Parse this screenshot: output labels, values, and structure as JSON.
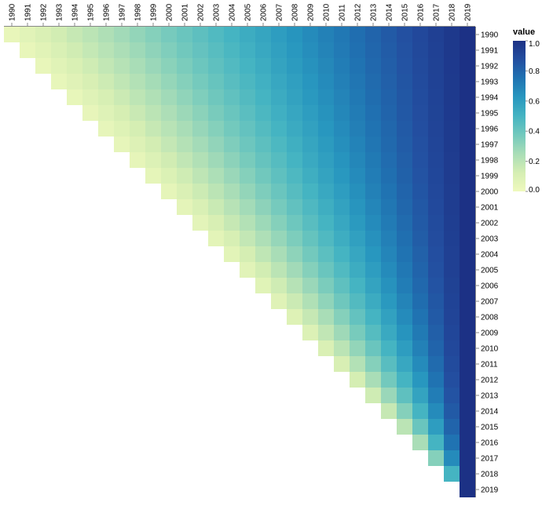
{
  "chart_data": {
    "type": "heatmap",
    "title": "",
    "x_categories": [
      "1990",
      "1991",
      "1992",
      "1993",
      "1994",
      "1995",
      "1996",
      "1997",
      "1998",
      "1999",
      "2000",
      "2001",
      "2002",
      "2003",
      "2004",
      "2005",
      "2006",
      "2007",
      "2008",
      "2009",
      "2010",
      "2011",
      "2012",
      "2013",
      "2014",
      "2015",
      "2016",
      "2017",
      "2018",
      "2019"
    ],
    "y_categories": [
      "1990",
      "1991",
      "1992",
      "1993",
      "1994",
      "1995",
      "1996",
      "1997",
      "1998",
      "1999",
      "2000",
      "2001",
      "2002",
      "2003",
      "2004",
      "2005",
      "2006",
      "2007",
      "2008",
      "2009",
      "2010",
      "2011",
      "2012",
      "2013",
      "2014",
      "2015",
      "2016",
      "2017",
      "2018",
      "2019"
    ],
    "x_axis_position": "top",
    "y_axis_position": "right",
    "shape": "upper-triangle",
    "value_rule": "value(row, col) = 1 - (2019 - col) / (2019 - row + 1), shown only where col >= row",
    "legend": {
      "title": "value",
      "ticks": [
        "1.0",
        "0.8",
        "0.6",
        "0.4",
        "0.2",
        "0.0"
      ],
      "domain": [
        0,
        1
      ],
      "placement": "right"
    },
    "color_scheme": {
      "name": "yellow-green-blue",
      "stops": [
        "#eff9bd",
        "#d5eeb3",
        "#a9ddb7",
        "#73c9bd",
        "#45b4c2",
        "#2897bf",
        "#2073b2",
        "#234ea0",
        "#1c3185"
      ]
    }
  }
}
